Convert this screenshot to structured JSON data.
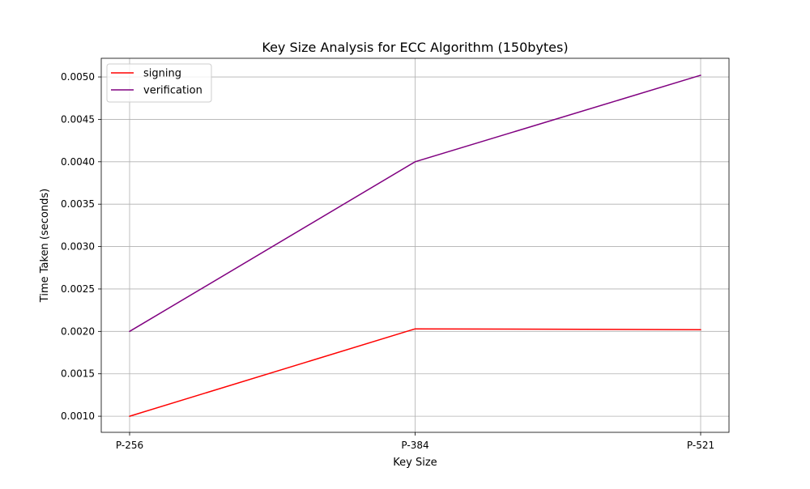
{
  "chart_data": {
    "type": "line",
    "title": "Key Size Analysis for ECC Algorithm (150bytes)",
    "xlabel": "Key Size",
    "ylabel": "Time Taken (seconds)",
    "categories": [
      "P-256",
      "P-384",
      "P-521"
    ],
    "ylim": [
      0.00081,
      0.00522
    ],
    "yticks": [
      "0.0010",
      "0.0015",
      "0.0020",
      "0.0025",
      "0.0030",
      "0.0035",
      "0.0040",
      "0.0045",
      "0.0050"
    ],
    "grid": true,
    "legend_position": "top-left",
    "series": [
      {
        "name": "signing",
        "color": "#ff0000",
        "values": [
          0.001,
          0.00203,
          0.00202
        ]
      },
      {
        "name": "verification",
        "color": "#800080",
        "values": [
          0.002,
          0.004,
          0.00502
        ]
      }
    ]
  }
}
